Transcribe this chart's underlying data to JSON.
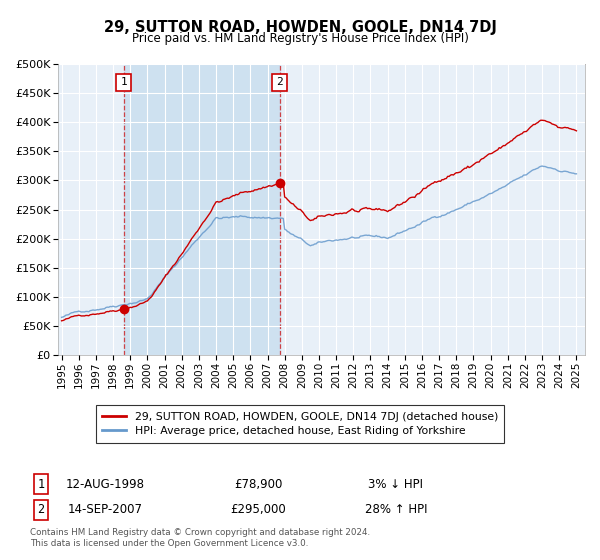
{
  "title": "29, SUTTON ROAD, HOWDEN, GOOLE, DN14 7DJ",
  "subtitle": "Price paid vs. HM Land Registry's House Price Index (HPI)",
  "hpi_label": "HPI: Average price, detached house, East Riding of Yorkshire",
  "property_label": "29, SUTTON ROAD, HOWDEN, GOOLE, DN14 7DJ (detached house)",
  "legend_note": "Contains HM Land Registry data © Crown copyright and database right 2024.\nThis data is licensed under the Open Government Licence v3.0.",
  "sale1_date": "12-AUG-1998",
  "sale1_price": 78900,
  "sale1_note": "3% ↓ HPI",
  "sale2_date": "14-SEP-2007",
  "sale2_price": 295000,
  "sale2_note": "28% ↑ HPI",
  "sale1_x": 1998.62,
  "sale2_x": 2007.71,
  "ylim": [
    0,
    500000
  ],
  "yticks": [
    0,
    50000,
    100000,
    150000,
    200000,
    250000,
    300000,
    350000,
    400000,
    450000,
    500000
  ],
  "xlim_start": 1994.8,
  "xlim_end": 2025.5,
  "property_color": "#cc0000",
  "hpi_color": "#6699cc",
  "shade_color": "#cce0f0",
  "sale_marker_color": "#cc0000",
  "plot_bg": "#e8f0f8",
  "grid_color": "#ffffff",
  "figsize": [
    6.0,
    5.6
  ],
  "dpi": 100
}
